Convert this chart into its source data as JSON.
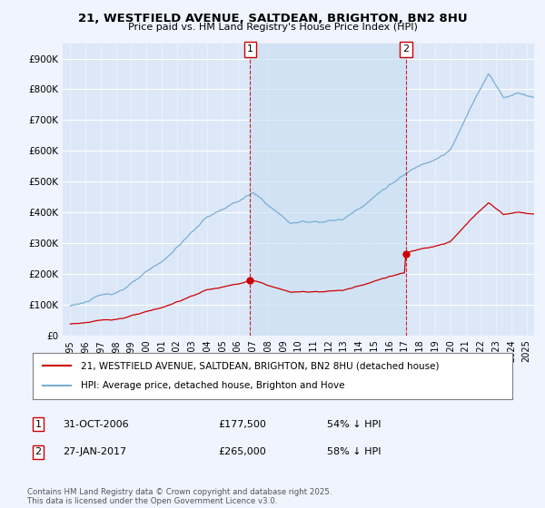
{
  "title_line1": "21, WESTFIELD AVENUE, SALTDEAN, BRIGHTON, BN2 8HU",
  "title_line2": "Price paid vs. HM Land Registry's House Price Index (HPI)",
  "background_color": "#f0f4ff",
  "plot_bg_color": "#dce8f8",
  "ylabel_ticks": [
    "£0",
    "£100K",
    "£200K",
    "£300K",
    "£400K",
    "£500K",
    "£600K",
    "£700K",
    "£800K",
    "£900K"
  ],
  "ytick_values": [
    0,
    100000,
    200000,
    300000,
    400000,
    500000,
    600000,
    700000,
    800000,
    900000
  ],
  "ylim": [
    0,
    950000
  ],
  "xlim_start": 1994.5,
  "xlim_end": 2025.5,
  "marker1_x": 2006.833,
  "marker1_y": 177500,
  "marker1_label": "1",
  "marker1_date": "31-OCT-2006",
  "marker1_price": "£177,500",
  "marker1_hpi": "54% ↓ HPI",
  "marker2_x": 2017.083,
  "marker2_y": 265000,
  "marker2_label": "2",
  "marker2_date": "27-JAN-2017",
  "marker2_price": "£265,000",
  "marker2_hpi": "58% ↓ HPI",
  "legend_line1": "21, WESTFIELD AVENUE, SALTDEAN, BRIGHTON, BN2 8HU (detached house)",
  "legend_line2": "HPI: Average price, detached house, Brighton and Hove",
  "footnote": "Contains HM Land Registry data © Crown copyright and database right 2025.\nThis data is licensed under the Open Government Licence v3.0.",
  "red_color": "#cc0000",
  "blue_color": "#7aaed4",
  "shade_color": "#c8dff0",
  "marker_box_color": "#cc0000",
  "grid_color": "#ffffff"
}
